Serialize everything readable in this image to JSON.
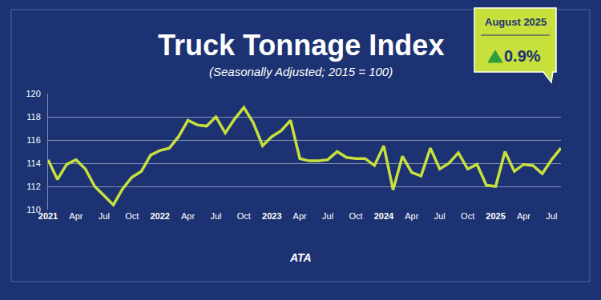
{
  "chart_data": {
    "type": "line",
    "title": "Truck Tonnage Index",
    "subtitle": "(Seasonally Adjusted; 2015 = 100)",
    "categories": [
      "2021",
      null,
      null,
      "Apr",
      null,
      null,
      "Jul",
      null,
      null,
      "Oct",
      null,
      null,
      "2022",
      null,
      null,
      "Apr",
      null,
      null,
      "Jul",
      null,
      null,
      "Oct",
      null,
      null,
      "2023",
      null,
      null,
      "Apr",
      null,
      null,
      "Jul",
      null,
      null,
      "Oct",
      null,
      null,
      "2024",
      null,
      null,
      "Apr",
      null,
      null,
      "Jul",
      null,
      null,
      "Oct",
      null,
      null,
      "2025",
      null,
      null,
      "Apr",
      null,
      null,
      "Jul",
      null
    ],
    "values": [
      114.3,
      112.6,
      113.9,
      114.3,
      113.5,
      112.0,
      111.2,
      110.4,
      111.8,
      112.8,
      113.3,
      114.7,
      115.1,
      115.3,
      116.3,
      117.7,
      117.3,
      117.2,
      118.0,
      116.6,
      117.8,
      118.8,
      117.5,
      115.5,
      116.3,
      116.8,
      117.7,
      114.4,
      114.2,
      114.2,
      114.3,
      115.0,
      114.5,
      114.4,
      114.4,
      113.8,
      115.5,
      111.7,
      114.6,
      113.2,
      112.9,
      115.3,
      113.5,
      114.0,
      114.9,
      113.5,
      113.9,
      112.1,
      112.0,
      115.0,
      113.3,
      113.9,
      113.8,
      113.1,
      114.3,
      115.3
    ],
    "color": "#c8e03c",
    "ylim": [
      110,
      120
    ],
    "yticks": [
      110,
      112,
      114,
      116,
      118,
      120
    ],
    "grid": true,
    "annotations": [
      "August 2025",
      "0.9%",
      "ATA"
    ]
  }
}
